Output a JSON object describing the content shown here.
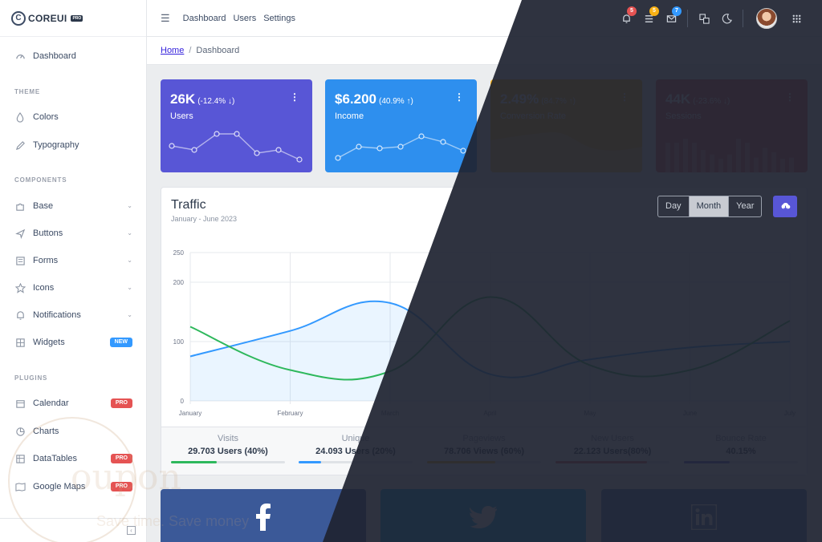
{
  "brand": {
    "name": "COREUI",
    "tag": "PRO"
  },
  "sidebar": {
    "dashboard": "Dashboard",
    "sections": {
      "theme": "THEME",
      "components": "COMPONENTS",
      "plugins": "PLUGINS"
    },
    "theme_items": [
      {
        "label": "Colors",
        "icon": "drop-icon"
      },
      {
        "label": "Typography",
        "icon": "pencil-icon"
      }
    ],
    "component_items": [
      {
        "label": "Base",
        "icon": "puzzle-icon"
      },
      {
        "label": "Buttons",
        "icon": "cursor-icon"
      },
      {
        "label": "Forms",
        "icon": "notes-icon"
      },
      {
        "label": "Icons",
        "icon": "star-icon"
      },
      {
        "label": "Notifications",
        "icon": "bell-icon"
      },
      {
        "label": "Widgets",
        "icon": "calculator-icon",
        "badge": "NEW"
      }
    ],
    "plugin_items": [
      {
        "label": "Calendar",
        "icon": "calendar-icon",
        "badge": "PRO"
      },
      {
        "label": "Charts",
        "icon": "chart-pie-icon"
      },
      {
        "label": "DataTables",
        "icon": "spreadsheet-icon",
        "badge": "PRO"
      },
      {
        "label": "Google Maps",
        "icon": "map-icon",
        "badge": "PRO"
      }
    ]
  },
  "header": {
    "links": [
      "Dashboard",
      "Users",
      "Settings"
    ],
    "notifications": {
      "bell": "5",
      "list": "5",
      "mail": "7"
    }
  },
  "breadcrumb": {
    "home": "Home",
    "current": "Dashboard"
  },
  "widgets": [
    {
      "value": "26K",
      "change": "(-12.4% ↓)",
      "label": "Users",
      "color": "#5856d6"
    },
    {
      "value": "$6.200",
      "change": "(40.9% ↑)",
      "label": "Income",
      "color": "#2e8fee"
    },
    {
      "value": "2.49%",
      "change": "(84.7% ↑)",
      "label": "Conversion Rate",
      "color": "#f9b115"
    },
    {
      "value": "44K",
      "change": "(-23.6% ↓)",
      "label": "Sessions",
      "color": "#e55353"
    }
  ],
  "traffic": {
    "title": "Traffic",
    "subtitle": "January - June 2023",
    "ranges": [
      "Day",
      "Month",
      "Year"
    ],
    "active_range": "Month",
    "stats": [
      {
        "label": "Visits",
        "value": "29.703 Users (40%)",
        "progress": 40,
        "color": "#2eb85c"
      },
      {
        "label": "Unique",
        "value": "24.093 Users (20%)",
        "progress": 20,
        "color": "#39f"
      },
      {
        "label": "Pageviews",
        "value": "78.706 Views (60%)",
        "progress": 60,
        "color": "#f9b115"
      },
      {
        "label": "New Users",
        "value": "22.123 Users(80%)",
        "progress": 80,
        "color": "#e55353"
      },
      {
        "label": "Bounce Rate",
        "value": "40.15%",
        "progress": 40.15,
        "color": "#5856d6"
      }
    ]
  },
  "chart_data": {
    "type": "line",
    "title": "",
    "categories": [
      "January",
      "February",
      "March",
      "April",
      "May",
      "June",
      "July"
    ],
    "ylim": [
      0,
      250
    ],
    "yticks": [
      0,
      100,
      200,
      250
    ],
    "series": [
      {
        "values": [
          75,
          118,
          165,
          45,
          70,
          90,
          100
        ],
        "color": "#39f",
        "fill": true
      },
      {
        "values": [
          125,
          52,
          50,
          175,
          60,
          52,
          135
        ],
        "color": "#2eb85c",
        "fill": false
      }
    ],
    "grid": true
  },
  "social": [
    {
      "network": "facebook",
      "glyph": "f",
      "color": "#3b5998"
    },
    {
      "network": "twitter",
      "glyph": "t",
      "color": "#00aced"
    },
    {
      "network": "linkedin",
      "glyph": "in",
      "color": "#4875b4"
    }
  ],
  "watermark": {
    "text": "oupon",
    "sub": "Save time. Save money"
  }
}
